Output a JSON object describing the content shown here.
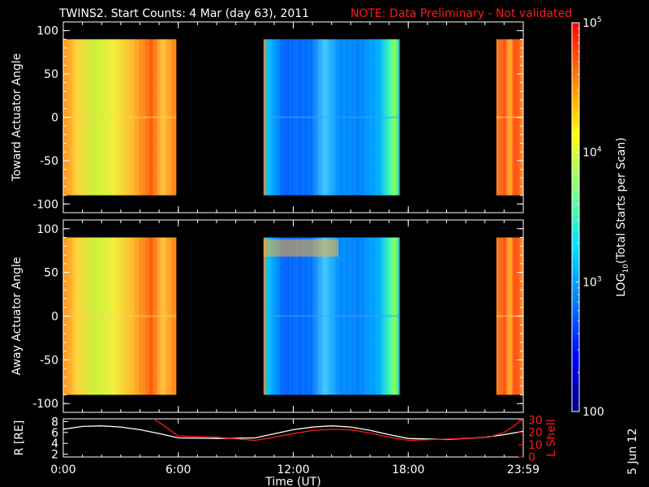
{
  "title": {
    "main": "TWINS2. Start Counts:  4 Mar (day  63), 2011",
    "note": "NOTE: Data Preliminary - Not validated"
  },
  "footer_date": "5 Jun 12",
  "colors": {
    "background": "#000000",
    "axes": "#ffffff",
    "note": "#ff1a1a",
    "radius_line": "#ffffff",
    "lshell_line": "#ff1a1a"
  },
  "chart_data": [
    {
      "type": "heatmap",
      "name": "toward",
      "ylabel": "Toward Actuator Angle",
      "xlim": [
        0,
        24
      ],
      "ylim": [
        -110,
        110
      ],
      "yticks": [
        "100",
        "50",
        "0",
        "-50",
        "-100"
      ],
      "ytick_values": [
        100,
        50,
        0,
        -50,
        -100
      ],
      "data_angle_range": [
        -90,
        90
      ],
      "data_segments": [
        {
          "start": 0.0,
          "end": 5.9,
          "level": "high"
        },
        {
          "start": 10.45,
          "end": 17.55,
          "level": "low"
        },
        {
          "start": 22.6,
          "end": 24.0,
          "level": "high"
        }
      ]
    },
    {
      "type": "heatmap",
      "name": "away",
      "ylabel": "Away Actuator Angle",
      "xlim": [
        0,
        24
      ],
      "ylim": [
        -110,
        110
      ],
      "yticks": [
        "100",
        "50",
        "0",
        "-50",
        "-100"
      ],
      "ytick_values": [
        100,
        50,
        0,
        -50,
        -100
      ],
      "data_angle_range": [
        -90,
        90
      ],
      "data_segments": [
        {
          "start": 0.0,
          "end": 5.9,
          "level": "high"
        },
        {
          "start": 10.45,
          "end": 17.55,
          "level": "low"
        },
        {
          "start": 22.6,
          "end": 24.0,
          "level": "high"
        }
      ]
    },
    {
      "type": "line",
      "name": "orbit",
      "ylabel_left": "R [RE]",
      "ylabel_right": "L Shell",
      "xlabel": "Time (UT)",
      "xticks": [
        "0:00",
        "6:00",
        "12:00",
        "18:00",
        "23:59"
      ],
      "xtick_values": [
        0,
        6,
        12,
        18,
        24
      ],
      "left_yticks": [
        "8",
        "6",
        "4",
        "2"
      ],
      "left_ytick_values": [
        8,
        6,
        4,
        2
      ],
      "left_ylim": [
        1.5,
        8.5
      ],
      "right_yticks": [
        "30",
        "20",
        "10",
        "0"
      ],
      "right_ytick_values": [
        30,
        20,
        10,
        0
      ],
      "right_ylim": [
        0,
        31
      ],
      "series": [
        {
          "name": "R [RE]",
          "axis": "left",
          "x": [
            0,
            1,
            2,
            3,
            4,
            5,
            6,
            8,
            10,
            12,
            13,
            14,
            15,
            16,
            17,
            18,
            20,
            22,
            23,
            24
          ],
          "y": [
            6.6,
            7.1,
            7.2,
            7.0,
            6.5,
            5.8,
            5.0,
            4.9,
            5.0,
            6.5,
            7.0,
            7.2,
            7.0,
            6.4,
            5.6,
            4.9,
            4.7,
            5.1,
            5.6,
            6.2
          ]
        },
        {
          "name": "L Shell",
          "axis": "right",
          "x": [
            4.7,
            5.2,
            6.0,
            8,
            10,
            11,
            12,
            13,
            14,
            15,
            16,
            17,
            18,
            20,
            22.2,
            23.0,
            23.5,
            24
          ],
          "y": [
            31,
            26,
            17,
            16,
            13.5,
            16,
            19,
            21.5,
            22.5,
            22,
            19.5,
            16,
            13.5,
            14.5,
            16,
            20,
            25,
            31
          ]
        }
      ]
    }
  ],
  "colorbar": {
    "label": "LOG10(Total Starts per Scan)",
    "label_main": "LOG",
    "label_sub": "10",
    "label_rest": "(Total Starts per Scan)",
    "scale": "log",
    "range": [
      100,
      100000
    ],
    "ticks": [
      {
        "value": 100000,
        "base": "10",
        "exp": "5"
      },
      {
        "value": 10000,
        "base": "10",
        "exp": "4"
      },
      {
        "value": 1000,
        "base": "10",
        "exp": "3"
      },
      {
        "value": 100,
        "text": "100"
      }
    ],
    "colormap": [
      "#00007a",
      "#0000ff",
      "#0080ff",
      "#00e5ff",
      "#80ff80",
      "#ffff00",
      "#ff8000",
      "#ff0000"
    ]
  }
}
